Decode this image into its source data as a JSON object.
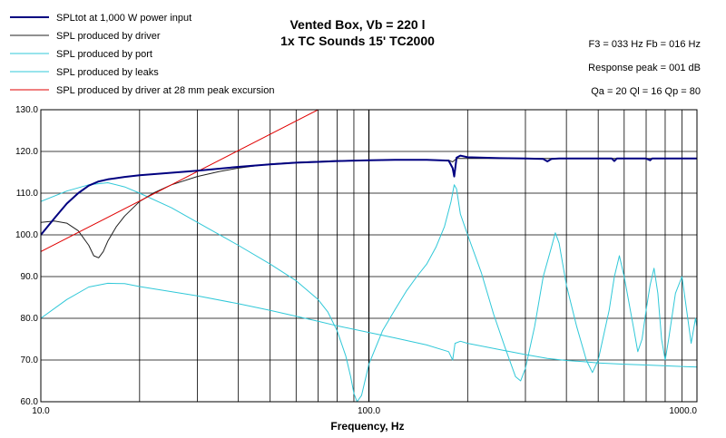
{
  "chart_data": {
    "type": "line",
    "title": "Vented Box, Vb = 220 l",
    "subtitle": "1x TC Sounds 15' TC2000",
    "xlabel": "Frequency, Hz",
    "ylabel": "",
    "x_scale": "log",
    "xlim": [
      10,
      1000
    ],
    "ylim": [
      60,
      130
    ],
    "grid": true,
    "legend_position": "top-left",
    "x_tick_labels": [
      "10.0",
      "100.0",
      "1000.0"
    ],
    "y_ticks": [
      60,
      70,
      80,
      90,
      100,
      110,
      120,
      130
    ],
    "y_tick_labels": [
      "60.0",
      "70.0",
      "80.0",
      "90.0",
      "100.0",
      "110.0",
      "120.0",
      "130.0"
    ],
    "info": [
      "F3 = 033 Hz  Fb = 016 Hz",
      "Response peak = 001 dB",
      "Qa = 20  Ql = 16  Qp = 80"
    ],
    "series": [
      {
        "name": "SPLtot at 1,000 W power input",
        "color": "#000080",
        "x": [
          10,
          11,
          12,
          13,
          14,
          15,
          16,
          18,
          20,
          25,
          30,
          40,
          50,
          60,
          70,
          80,
          100,
          120,
          150,
          175,
          180,
          182,
          185,
          190,
          200,
          250,
          300,
          340,
          350,
          360,
          380,
          400,
          500,
          550,
          560,
          570,
          600,
          700,
          720,
          730,
          750,
          800,
          900,
          1000
        ],
        "values": [
          100,
          104,
          107.5,
          110,
          111.8,
          112.8,
          113.3,
          113.9,
          114.3,
          114.9,
          115.4,
          116.3,
          116.9,
          117.3,
          117.5,
          117.7,
          117.9,
          118,
          118,
          117.8,
          116,
          114,
          118.5,
          119,
          118.6,
          118.4,
          118.3,
          118.2,
          117.6,
          118.2,
          118.3,
          118.3,
          118.3,
          118.3,
          117.7,
          118.3,
          118.3,
          118.3,
          117.9,
          118.3,
          118.3,
          118.3,
          118.3,
          118.3
        ]
      },
      {
        "name": "SPL produced by driver",
        "color": "#202020",
        "x": [
          10,
          11,
          12,
          13,
          14,
          14.5,
          15,
          15.5,
          16,
          17,
          18,
          20,
          22,
          25,
          30,
          35,
          40,
          50,
          60,
          70,
          80,
          100,
          120,
          150,
          175,
          180,
          185,
          200,
          300,
          400,
          500,
          700,
          1000
        ],
        "values": [
          103,
          103.3,
          102.8,
          101,
          97.5,
          95,
          94.5,
          96,
          98.5,
          102,
          104.5,
          108,
          110,
          112,
          114,
          115.2,
          116,
          117,
          117.4,
          117.6,
          117.8,
          117.9,
          118,
          118,
          117.9,
          117.5,
          118.3,
          118.3,
          118.3,
          118.3,
          118.3,
          118.3,
          118.3
        ]
      },
      {
        "name": "SPL produced by port",
        "color": "#30c8d8",
        "x": [
          10,
          12,
          14,
          16,
          18,
          20,
          25,
          30,
          40,
          50,
          60,
          70,
          75,
          80,
          85,
          88,
          90,
          92,
          95,
          100,
          110,
          120,
          130,
          140,
          150,
          160,
          170,
          178,
          182,
          185,
          190,
          200,
          220,
          240,
          260,
          280,
          290,
          300,
          320,
          340,
          360,
          370,
          380,
          400,
          430,
          460,
          480,
          500,
          540,
          560,
          580,
          600,
          640,
          660,
          680,
          700,
          720,
          740,
          760,
          780,
          800,
          820,
          860,
          900,
          930,
          960,
          990,
          1000
        ],
        "values": [
          108,
          110.5,
          112,
          112.5,
          111.5,
          110,
          106.5,
          103,
          97.5,
          93,
          89,
          84.5,
          81.5,
          77,
          71,
          66,
          62,
          60,
          61.5,
          69,
          77,
          82,
          86.5,
          90,
          93,
          97,
          102,
          108,
          112,
          111,
          105,
          100,
          91,
          81,
          73,
          66,
          65,
          68,
          78,
          90,
          97,
          100.5,
          98,
          88,
          78,
          70,
          67,
          70,
          82,
          90,
          95,
          90,
          78,
          72,
          75,
          82,
          88,
          92,
          86,
          75,
          70,
          75,
          86,
          90,
          82,
          74,
          80,
          78
        ]
      },
      {
        "name": "SPL produced by leaks",
        "color": "#30c8d8",
        "x": [
          10,
          12,
          14,
          16,
          18,
          20,
          30,
          40,
          50,
          60,
          70,
          80,
          100,
          120,
          150,
          175,
          180,
          183,
          190,
          200,
          250,
          300,
          350,
          400,
          450,
          500,
          600,
          700,
          800,
          1000
        ],
        "values": [
          80,
          84.5,
          87.5,
          88.4,
          88.3,
          87.6,
          85.4,
          83.5,
          81.9,
          80.5,
          79.3,
          78.2,
          76.6,
          75.3,
          73.6,
          72,
          70,
          74,
          74.5,
          74,
          72.5,
          71.3,
          70.4,
          69.9,
          69.6,
          69.3,
          69,
          68.8,
          68.6,
          68.3
        ]
      },
      {
        "name": "SPL produced by driver at 28 mm peak excursion",
        "color": "#e00000",
        "x": [
          10,
          70
        ],
        "values": [
          96,
          130
        ]
      }
    ]
  }
}
